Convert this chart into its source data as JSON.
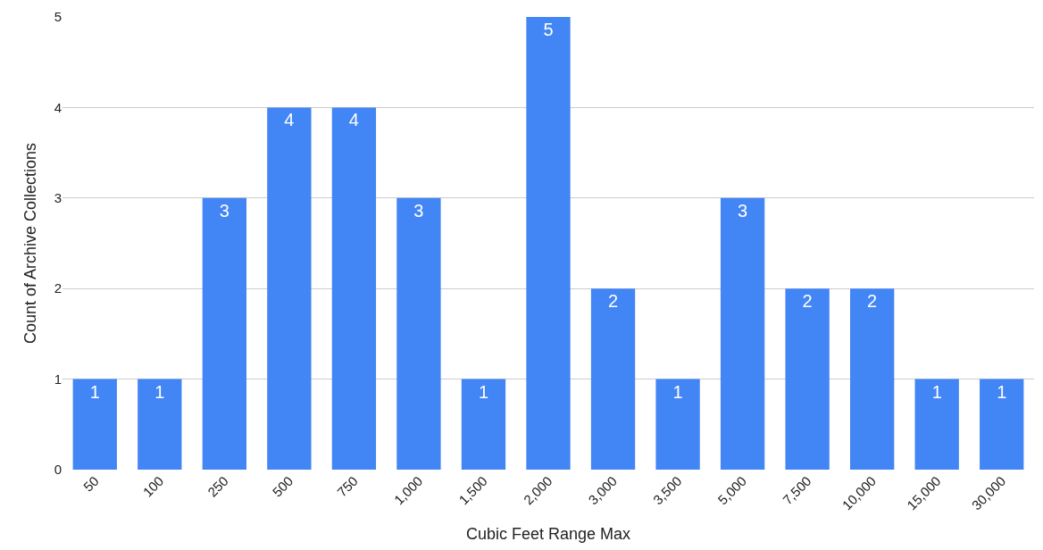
{
  "chart_data": {
    "type": "bar",
    "xlabel": "Cubic Feet Range Max",
    "ylabel": "Count of Archive Collections",
    "categories": [
      "50",
      "100",
      "250",
      "500",
      "750",
      "1,000",
      "1,500",
      "2,000",
      "3,000",
      "3,500",
      "5,000",
      "7,500",
      "10,000",
      "15,000",
      "30,000"
    ],
    "values": [
      1,
      1,
      3,
      4,
      4,
      3,
      1,
      5,
      2,
      1,
      3,
      2,
      2,
      1,
      1
    ],
    "color": "#4285f4",
    "ylim": [
      0,
      5
    ],
    "yticks": [
      0,
      1,
      2,
      3,
      4,
      5
    ],
    "grid": "y",
    "data_labels": true
  }
}
